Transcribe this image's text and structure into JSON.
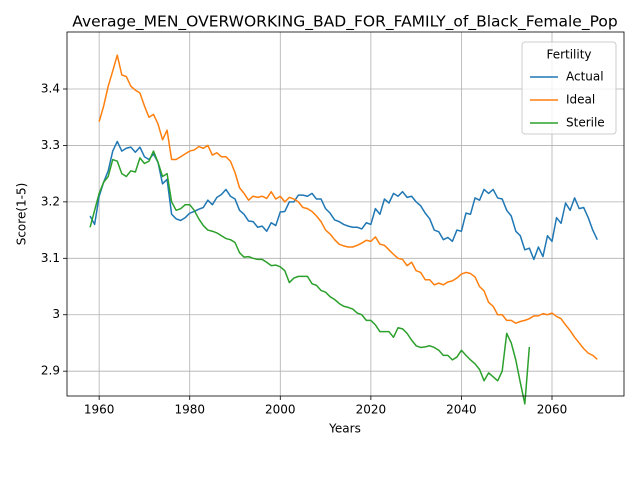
{
  "chart_data": {
    "type": "line",
    "title": "Average_MEN_OVERWORKING_BAD_FOR_FAMILY_of_Black_Female_Pop",
    "x_label": "Years",
    "y_label": "Score(1-5)",
    "x": [
      1958,
      1959,
      1960,
      1961,
      1962,
      1963,
      1964,
      1965,
      1966,
      1967,
      1968,
      1969,
      1970,
      1971,
      1972,
      1973,
      1974,
      1975,
      1976,
      1977,
      1978,
      1979,
      1980,
      1981,
      1982,
      1983,
      1984,
      1985,
      1986,
      1987,
      1988,
      1989,
      1990,
      1991,
      1992,
      1993,
      1994,
      1995,
      1996,
      1997,
      1998,
      1999,
      2000,
      2001,
      2002,
      2003,
      2004,
      2005,
      2006,
      2007,
      2008,
      2009,
      2010,
      2011,
      2012,
      2013,
      2014,
      2015,
      2016,
      2017,
      2018,
      2019,
      2020,
      2021,
      2022,
      2023,
      2024,
      2025,
      2026,
      2027,
      2028,
      2029,
      2030,
      2031,
      2032,
      2033,
      2034,
      2035,
      2036,
      2037,
      2038,
      2039,
      2040,
      2041,
      2042,
      2043,
      2044,
      2045,
      2046,
      2047,
      2048,
      2049,
      2050,
      2051,
      2052,
      2053,
      2054,
      2055,
      2056,
      2057,
      2058,
      2059,
      2060,
      2061,
      2062,
      2063,
      2064,
      2065,
      2066,
      2067,
      2068,
      2069,
      2070
    ],
    "series": [
      {
        "name": "Actual",
        "color": "#1f77b4",
        "values": [
          3.175,
          3.16,
          3.21,
          3.235,
          3.255,
          3.29,
          3.307,
          3.29,
          3.295,
          3.297,
          3.288,
          3.297,
          3.28,
          3.275,
          3.285,
          3.27,
          3.232,
          3.24,
          3.178,
          3.17,
          3.167,
          3.172,
          3.18,
          3.183,
          3.187,
          3.19,
          3.203,
          3.195,
          3.208,
          3.213,
          3.222,
          3.21,
          3.205,
          3.185,
          3.178,
          3.166,
          3.165,
          3.155,
          3.157,
          3.148,
          3.163,
          3.158,
          3.182,
          3.183,
          3.2,
          3.2,
          3.212,
          3.212,
          3.21,
          3.215,
          3.205,
          3.205,
          3.188,
          3.18,
          3.168,
          3.165,
          3.16,
          3.157,
          3.155,
          3.155,
          3.152,
          3.163,
          3.16,
          3.188,
          3.178,
          3.205,
          3.198,
          3.215,
          3.21,
          3.218,
          3.208,
          3.21,
          3.2,
          3.193,
          3.18,
          3.17,
          3.15,
          3.147,
          3.133,
          3.137,
          3.13,
          3.15,
          3.148,
          3.18,
          3.178,
          3.207,
          3.203,
          3.222,
          3.215,
          3.222,
          3.207,
          3.205,
          3.185,
          3.175,
          3.148,
          3.14,
          3.115,
          3.118,
          3.098,
          3.12,
          3.103,
          3.14,
          3.13,
          3.172,
          3.162,
          3.198,
          3.185,
          3.207,
          3.188,
          3.19,
          3.172,
          3.15,
          3.133
        ]
      },
      {
        "name": "Ideal",
        "color": "#ff7f0e",
        "values": [
          null,
          null,
          3.342,
          3.37,
          3.405,
          3.432,
          3.46,
          3.425,
          3.422,
          3.405,
          3.398,
          3.393,
          3.37,
          3.35,
          3.355,
          3.338,
          3.31,
          3.327,
          3.275,
          3.275,
          3.28,
          3.285,
          3.29,
          3.292,
          3.298,
          3.295,
          3.3,
          3.283,
          3.287,
          3.28,
          3.28,
          3.272,
          3.252,
          3.225,
          3.215,
          3.203,
          3.21,
          3.208,
          3.21,
          3.206,
          3.218,
          3.205,
          3.21,
          3.2,
          3.208,
          3.205,
          3.2,
          3.19,
          3.188,
          3.183,
          3.175,
          3.165,
          3.15,
          3.143,
          3.133,
          3.125,
          3.122,
          3.12,
          3.12,
          3.123,
          3.127,
          3.132,
          3.13,
          3.138,
          3.125,
          3.123,
          3.115,
          3.107,
          3.1,
          3.098,
          3.087,
          3.093,
          3.078,
          3.075,
          3.062,
          3.062,
          3.053,
          3.056,
          3.053,
          3.058,
          3.06,
          3.065,
          3.072,
          3.075,
          3.073,
          3.067,
          3.05,
          3.042,
          3.022,
          3.015,
          3.0,
          3.0,
          2.99,
          2.99,
          2.985,
          2.988,
          2.99,
          2.993,
          2.998,
          2.998,
          3.002,
          3.0,
          3.003,
          2.997,
          2.993,
          2.982,
          2.972,
          2.96,
          2.95,
          2.94,
          2.932,
          2.928,
          2.921
        ]
      },
      {
        "name": "Sterile",
        "color": "#2ca02c",
        "values": [
          3.155,
          3.185,
          3.215,
          3.235,
          3.245,
          3.275,
          3.272,
          3.25,
          3.245,
          3.255,
          3.253,
          3.278,
          3.268,
          3.272,
          3.29,
          3.27,
          3.245,
          3.25,
          3.2,
          3.185,
          3.188,
          3.195,
          3.195,
          3.185,
          3.17,
          3.158,
          3.15,
          3.148,
          3.145,
          3.14,
          3.135,
          3.133,
          3.128,
          3.11,
          3.102,
          3.103,
          3.1,
          3.098,
          3.098,
          3.093,
          3.087,
          3.088,
          3.085,
          3.078,
          3.057,
          3.065,
          3.068,
          3.068,
          3.068,
          3.055,
          3.052,
          3.043,
          3.04,
          3.032,
          3.027,
          3.02,
          3.015,
          3.013,
          3.01,
          3.003,
          3.0,
          2.99,
          2.99,
          2.982,
          2.97,
          2.97,
          2.97,
          2.96,
          2.977,
          2.975,
          2.967,
          2.955,
          2.945,
          2.942,
          2.943,
          2.945,
          2.942,
          2.937,
          2.928,
          2.928,
          2.92,
          2.925,
          2.937,
          2.928,
          2.92,
          2.913,
          2.903,
          2.883,
          2.897,
          2.89,
          2.883,
          2.9,
          2.967,
          2.95,
          2.92,
          2.88,
          2.842,
          2.943,
          null,
          null,
          null,
          null,
          null,
          null,
          null,
          null,
          null,
          null,
          null,
          null,
          null,
          null,
          null
        ]
      }
    ],
    "xlim": [
      1952.9,
      2075.9
    ],
    "xticks": [
      1960,
      1980,
      2000,
      2020,
      2040,
      2060
    ],
    "ylim": [
      2.856,
      3.501
    ],
    "yticks": [
      2.9,
      3.0,
      3.1,
      3.2,
      3.3,
      3.4
    ],
    "grid": true,
    "legend_title": "Fertility",
    "legend_position": "upper right"
  }
}
